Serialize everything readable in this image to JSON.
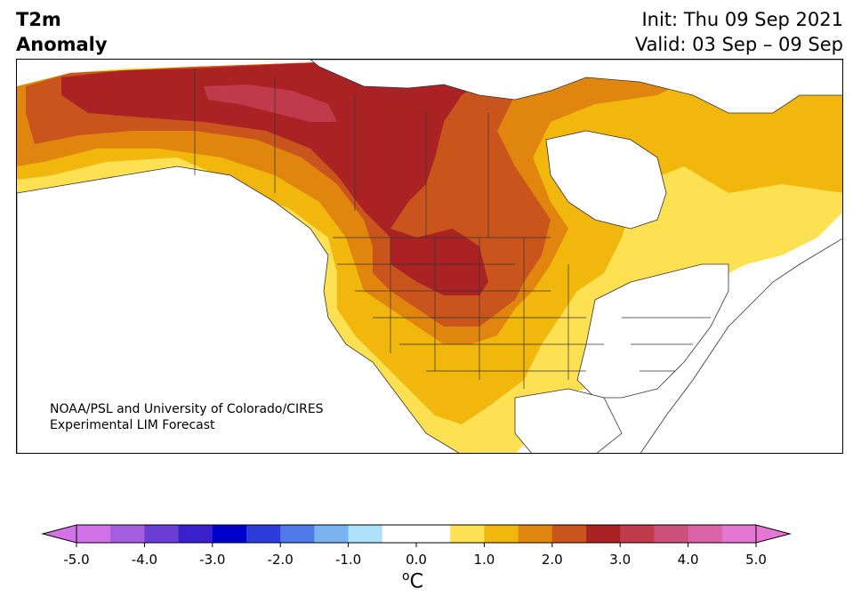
{
  "title": {
    "line1": "T2m",
    "line2": "Anomaly"
  },
  "dates": {
    "init": "Init: Thu 09 Sep 2021",
    "valid": "Valid: 03 Sep – 09 Sep"
  },
  "credit": {
    "line1": "NOAA/PSL and University of Colorado/CIRES",
    "line2": "Experimental LIM Forecast"
  },
  "colorbar": {
    "unit": "C",
    "unit_prefix": "o",
    "ticks": [
      "-5.0",
      "-4.0",
      "-3.0",
      "-2.0",
      "-1.0",
      "0.0",
      "1.0",
      "2.0",
      "3.0",
      "4.0",
      "5.0"
    ],
    "colors": [
      "#d272e8",
      "#a35ee0",
      "#6a3dd6",
      "#3a1fcc",
      "#0000cc",
      "#2a3ddb",
      "#4f79e8",
      "#79b3f0",
      "#ade0fb",
      "#ffffff",
      "#ffffff",
      "#fee153",
      "#f1b70c",
      "#e0860f",
      "#c9541c",
      "#ab2224",
      "#bf3a4a",
      "#cd4f7c",
      "#da62a8",
      "#e676d4"
    ],
    "under_color": "#d272e8",
    "over_color": "#e676d4"
  },
  "map_colors": {
    "land": "#ffffff",
    "ocean": "#ffffff",
    "c05": "#fee153",
    "c10": "#f1b70c",
    "c15": "#e0860f",
    "c20": "#c9541c",
    "c25": "#ab2224",
    "c30": "#bf3a4a"
  }
}
